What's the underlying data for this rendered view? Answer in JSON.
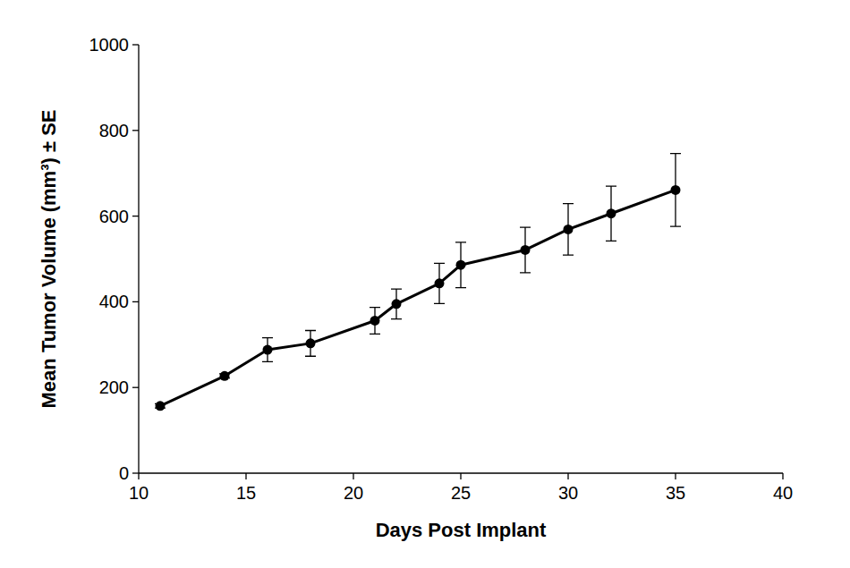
{
  "chart_data": {
    "type": "line",
    "x_label": "Days Post Implant",
    "y_label": "Mean Tumor Volume (mm³) ± SE",
    "x": [
      11,
      14,
      16,
      18,
      21,
      22,
      24,
      25,
      28,
      30,
      32,
      35
    ],
    "series": [
      {
        "values": [
          157,
          227,
          288,
          303,
          356,
          395,
          443,
          486,
          521,
          569,
          606,
          661
        ],
        "errors": [
          5,
          5,
          28,
          30,
          31,
          35,
          47,
          53,
          53,
          60,
          64,
          85
        ],
        "color": "#000000",
        "marker": "circle",
        "line_style": "solid"
      }
    ],
    "xlim": [
      10,
      40
    ],
    "xticks": [
      10,
      15,
      20,
      25,
      30,
      35,
      40
    ],
    "ylim": [
      0,
      1000
    ],
    "yticks": [
      0,
      200,
      400,
      600,
      800,
      1000
    ],
    "grid": false
  }
}
